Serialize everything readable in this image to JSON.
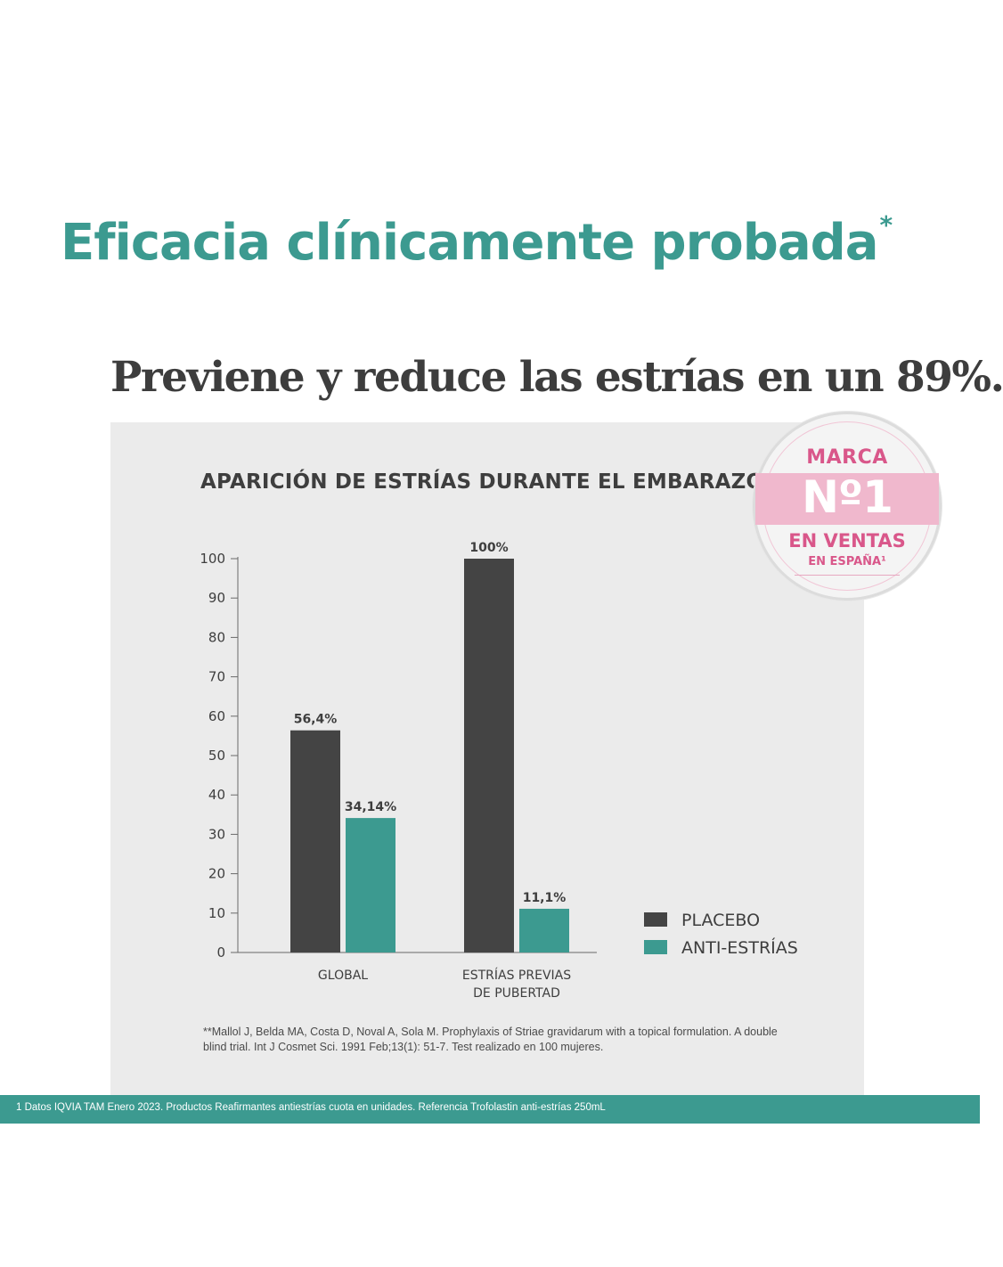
{
  "header": {
    "title": "Eficacia clínicamente probada",
    "title_mark": "*",
    "subtitle": "Previene y reduce las estrías en un 89%."
  },
  "badge": {
    "line1": "MARCA",
    "line2": "Nº1",
    "line3": "EN VENTAS",
    "line4": "EN ESPAÑA¹"
  },
  "chart_data": {
    "type": "bar",
    "title": "APARICIÓN DE ESTRÍAS DURANTE EL EMBARAZO",
    "categories": [
      "GLOBAL",
      "ESTRÍAS PREVIAS\nDE PUBERTAD"
    ],
    "series": [
      {
        "name": "PLACEBO",
        "values": [
          56.4,
          100
        ],
        "labels": [
          "56,4%",
          "100%"
        ],
        "color": "#444444"
      },
      {
        "name": "ANTI-ESTRÍAS",
        "values": [
          34.14,
          11.1
        ],
        "labels": [
          "34,14%",
          "11,1%"
        ],
        "color": "#3c9a90"
      }
    ],
    "yticks": [
      0,
      10,
      20,
      30,
      40,
      50,
      60,
      70,
      80,
      90,
      100
    ],
    "ylim": [
      0,
      100
    ],
    "xlabel": "",
    "ylabel": "",
    "grid": false,
    "legend_position": "bottom-right"
  },
  "reference": "**Mallol J, Belda MA, Costa D, Noval A, Sola M. Prophylaxis of Striae gravidarum with a topical formulation. A double blind trial. Int J Cosmet Sci. 1991 Feb;13(1): 51-7. Test realizado en 100 mujeres.",
  "footer": "1 Datos IQVIA TAM Enero 2023. Productos Reafirmantes antiestrías cuota en unidades. Referencia Trofolastin anti-estrías 250mL",
  "colors": {
    "accent": "#3c9a90",
    "placebo": "#444444",
    "badge_pink": "#d9578a",
    "panel": "#ebebeb"
  }
}
